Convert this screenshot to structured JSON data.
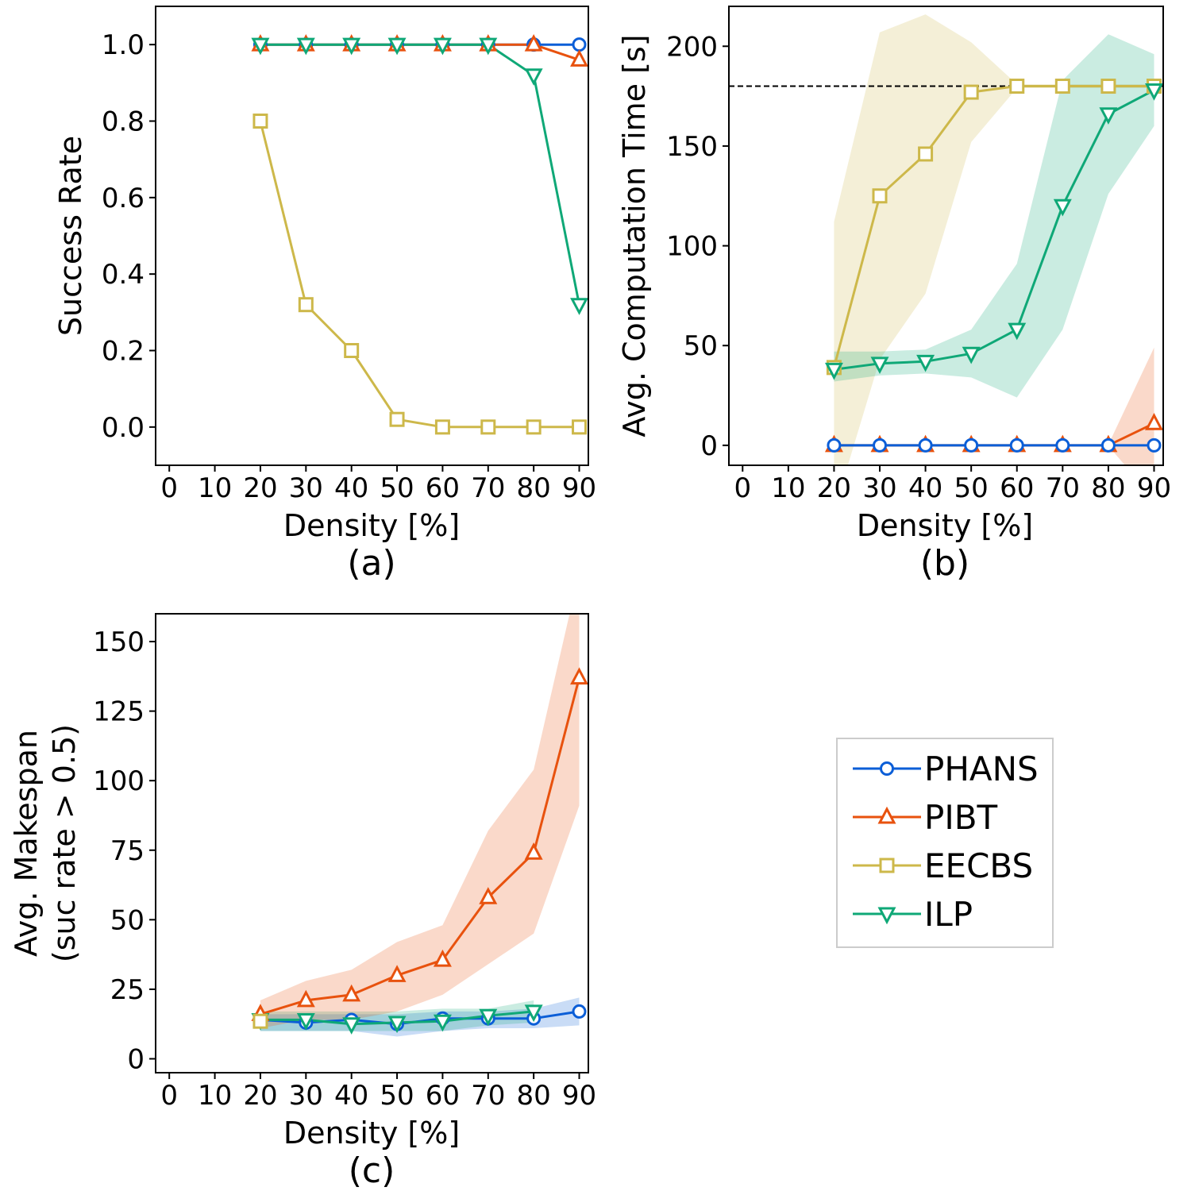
{
  "chart_data": [
    {
      "id": "a",
      "type": "line",
      "panel_label": "(a)",
      "xlabel": "Density [%]",
      "ylabel": "Success Rate",
      "xlim": [
        -3,
        92
      ],
      "ylim": [
        -0.1,
        1.1
      ],
      "xticks": [
        0,
        10,
        20,
        30,
        40,
        50,
        60,
        70,
        80,
        90
      ],
      "yticks": [
        0.0,
        0.2,
        0.4,
        0.6,
        0.8,
        1.0
      ],
      "ytick_decimals": 1,
      "x": [
        20,
        30,
        40,
        50,
        60,
        70,
        80,
        90
      ],
      "series": [
        {
          "name": "EECBS",
          "values": [
            0.8,
            0.32,
            0.2,
            0.02,
            0.0,
            0.0,
            0.0,
            0.0
          ]
        },
        {
          "name": "PHANS",
          "values": [
            1.0,
            1.0,
            1.0,
            1.0,
            1.0,
            1.0,
            1.0,
            1.0
          ]
        },
        {
          "name": "PIBT",
          "values": [
            1.0,
            1.0,
            1.0,
            1.0,
            1.0,
            1.0,
            1.0,
            0.96
          ]
        },
        {
          "name": "ILP",
          "values": [
            1.0,
            1.0,
            1.0,
            1.0,
            1.0,
            1.0,
            0.92,
            0.32
          ]
        }
      ]
    },
    {
      "id": "b",
      "type": "line",
      "panel_label": "(b)",
      "xlabel": "Density [%]",
      "ylabel": "Avg. Computation Time [s]",
      "xlim": [
        -3,
        92
      ],
      "ylim": [
        -10,
        220
      ],
      "xticks": [
        0,
        10,
        20,
        30,
        40,
        50,
        60,
        70,
        80,
        90
      ],
      "yticks": [
        0,
        50,
        100,
        150,
        200
      ],
      "ytick_decimals": 0,
      "hline": 180,
      "x": [
        20,
        30,
        40,
        50,
        60,
        70,
        80,
        90
      ],
      "series": [
        {
          "name": "EECBS",
          "values": [
            39,
            125,
            146,
            177,
            180,
            180,
            180,
            180
          ],
          "band_upper": [
            112,
            207,
            216,
            202,
            181,
            181,
            181,
            181
          ],
          "band_lower": [
            -33,
            43,
            76,
            152,
            179,
            179,
            179,
            179
          ]
        },
        {
          "name": "ILP",
          "values": [
            38,
            41,
            42,
            46,
            58,
            120,
            166,
            178
          ],
          "band_upper": [
            47,
            47,
            48,
            58,
            91,
            183,
            206,
            196
          ],
          "band_lower": [
            32,
            35,
            36,
            34,
            24,
            58,
            126,
            160
          ]
        },
        {
          "name": "PIBT",
          "values": [
            0,
            0,
            0,
            0,
            0,
            0,
            0,
            11
          ],
          "band_upper": [
            0.3,
            0.3,
            0.3,
            0.3,
            0.3,
            0.3,
            0.3,
            49
          ],
          "band_lower": [
            -0.3,
            -0.3,
            -0.3,
            -0.3,
            -0.3,
            -0.3,
            -0.3,
            -27
          ]
        },
        {
          "name": "PHANS",
          "values": [
            0,
            0,
            0,
            0,
            0,
            0,
            0,
            0
          ]
        }
      ]
    },
    {
      "id": "c",
      "type": "line",
      "panel_label": "(c)",
      "xlabel": "Density [%]",
      "ylabel_lines": [
        "Avg. Makespan",
        "(suc rate > 0.5)"
      ],
      "xlim": [
        -3,
        92
      ],
      "ylim": [
        -5,
        160
      ],
      "xticks": [
        0,
        10,
        20,
        30,
        40,
        50,
        60,
        70,
        80,
        90
      ],
      "yticks": [
        0,
        25,
        50,
        75,
        100,
        125,
        150
      ],
      "ytick_decimals": 0,
      "series": [
        {
          "name": "PHANS",
          "x": [
            20,
            30,
            40,
            50,
            60,
            70,
            80,
            90
          ],
          "values": [
            14,
            13,
            14,
            12.5,
            14.5,
            14.5,
            14.5,
            17
          ],
          "band_upper": [
            16,
            16,
            16,
            16,
            17,
            17,
            18,
            22
          ],
          "band_lower": [
            10,
            10,
            10,
            8,
            10,
            11,
            11,
            12
          ]
        },
        {
          "name": "ILP",
          "x": [
            20,
            30,
            40,
            50,
            60,
            70,
            80
          ],
          "values": [
            14,
            14,
            12.5,
            13,
            13.5,
            15.5,
            17
          ],
          "band_upper": [
            17,
            17,
            17,
            17,
            18,
            18,
            21
          ],
          "band_lower": [
            10,
            10,
            10,
            10,
            10,
            12,
            13
          ]
        },
        {
          "name": "PIBT",
          "x": [
            20,
            30,
            40,
            50,
            60,
            70,
            80,
            90
          ],
          "values": [
            16,
            21,
            23,
            30,
            35.5,
            58,
            74,
            137
          ],
          "band_upper": [
            21,
            28,
            32,
            42,
            48,
            82,
            104,
            175
          ],
          "band_lower": [
            11,
            14,
            14,
            17,
            23,
            34,
            45,
            91
          ]
        },
        {
          "name": "EECBS",
          "x": [
            20
          ],
          "values": [
            13.5
          ]
        }
      ]
    }
  ],
  "legend": {
    "items": [
      {
        "name": "PHANS",
        "label": "PHANS"
      },
      {
        "name": "PIBT",
        "label": "PIBT"
      },
      {
        "name": "EECBS",
        "label": "EECBS"
      },
      {
        "name": "ILP",
        "label": "ILP"
      }
    ]
  },
  "styles": {
    "PHANS": {
      "color": "#0b5ed7",
      "marker": "circle"
    },
    "PIBT": {
      "color": "#e8520e",
      "marker": "triangle-up"
    },
    "EECBS": {
      "color": "#cdb84a",
      "marker": "square"
    },
    "ILP": {
      "color": "#0fa877",
      "marker": "triangle-down"
    }
  }
}
